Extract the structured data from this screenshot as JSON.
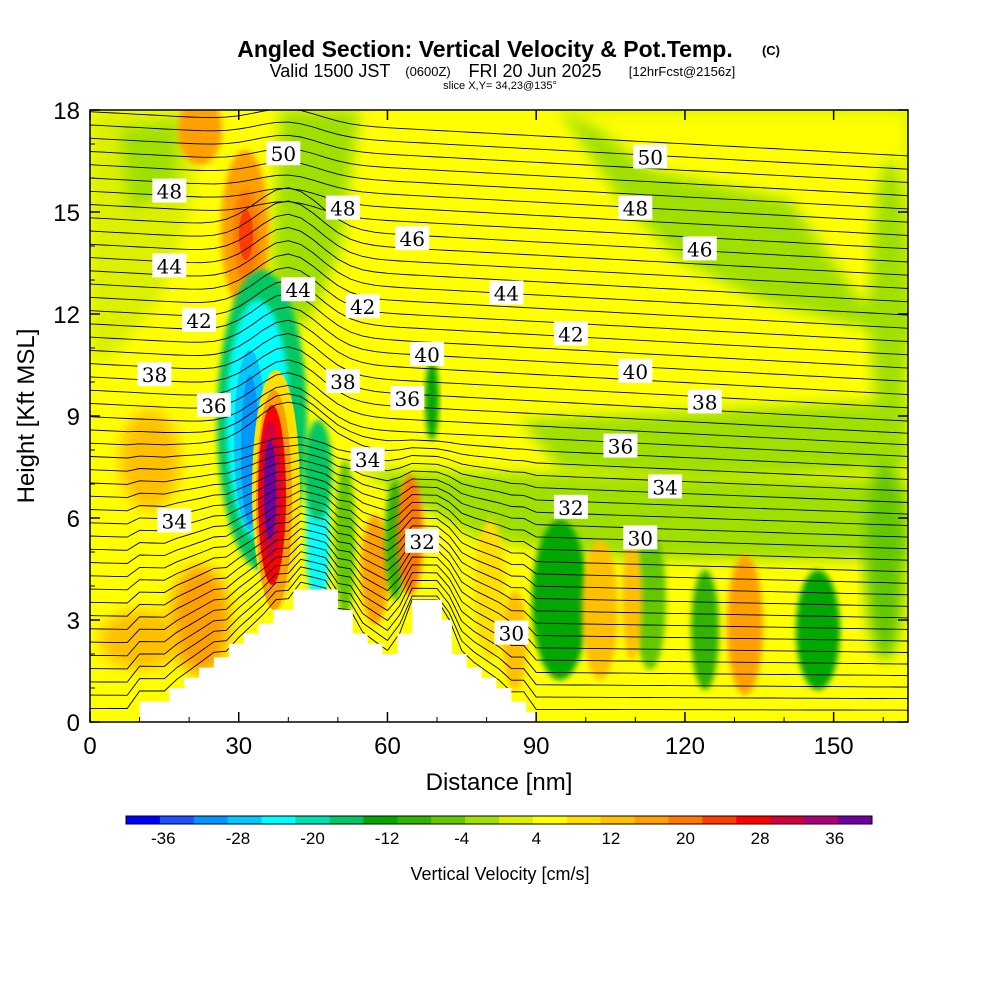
{
  "title": {
    "main": "Angled Section: Vertical Velocity & Pot.Temp.",
    "copyright": "(C)",
    "valid_prefix": "Valid 1500 JST",
    "valid_zulu": "(0600Z)",
    "valid_date": "FRI 20 Jun 2025",
    "forecast_note": "[12hrFcst@2156z]",
    "slice": "slice X,Y= 34,23@135°"
  },
  "chart_data": {
    "type": "heatmap",
    "xlabel": "Distance [nm]",
    "ylabel": "Height [Kft MSL]",
    "xlim": [
      0,
      165
    ],
    "ylim": [
      0,
      18
    ],
    "x_ticks": [
      "0",
      "30",
      "60",
      "90",
      "120",
      "150"
    ],
    "y_ticks": [
      "0",
      "3",
      "6",
      "9",
      "12",
      "15",
      "18"
    ],
    "x_tick_values": [
      0,
      30,
      60,
      90,
      120,
      150
    ],
    "y_tick_values": [
      0,
      3,
      6,
      9,
      12,
      15,
      18
    ],
    "colorbar": {
      "label": "Vertical Velocity [cm/s]",
      "tick_labels": [
        "-36",
        "-28",
        "-20",
        "-12",
        "-4",
        "4",
        "12",
        "20",
        "28",
        "36"
      ],
      "tick_values": [
        -36,
        -28,
        -20,
        -12,
        -4,
        4,
        12,
        20,
        28,
        36
      ],
      "range": [
        -40,
        40
      ],
      "colors": [
        "#0000ff",
        "#1e50ff",
        "#0096ff",
        "#00c8ff",
        "#00ffff",
        "#00e0b0",
        "#00c864",
        "#00a800",
        "#30b400",
        "#64c800",
        "#a0e000",
        "#dcf000",
        "#ffff00",
        "#ffe000",
        "#ffc000",
        "#ffa000",
        "#ff7800",
        "#ff3c00",
        "#ff0000",
        "#d2003c",
        "#aa0078",
        "#6e009e"
      ]
    },
    "contour_labels": [
      {
        "text": "50",
        "x": 39,
        "y": 16.7
      },
      {
        "text": "50",
        "x": 113,
        "y": 16.6
      },
      {
        "text": "48",
        "x": 16,
        "y": 15.6
      },
      {
        "text": "48",
        "x": 51,
        "y": 15.1
      },
      {
        "text": "48",
        "x": 110,
        "y": 15.1
      },
      {
        "text": "46",
        "x": 65,
        "y": 14.2
      },
      {
        "text": "46",
        "x": 123,
        "y": 13.9
      },
      {
        "text": "44",
        "x": 16,
        "y": 13.4
      },
      {
        "text": "44",
        "x": 42,
        "y": 12.7
      },
      {
        "text": "44",
        "x": 84,
        "y": 12.6
      },
      {
        "text": "42",
        "x": 22,
        "y": 11.8
      },
      {
        "text": "42",
        "x": 55,
        "y": 12.2
      },
      {
        "text": "42",
        "x": 97,
        "y": 11.4
      },
      {
        "text": "40",
        "x": 68,
        "y": 10.8
      },
      {
        "text": "40",
        "x": 110,
        "y": 10.3
      },
      {
        "text": "38",
        "x": 13,
        "y": 10.2
      },
      {
        "text": "38",
        "x": 51,
        "y": 10.0
      },
      {
        "text": "38",
        "x": 124,
        "y": 9.4
      },
      {
        "text": "36",
        "x": 25,
        "y": 9.3
      },
      {
        "text": "36",
        "x": 64,
        "y": 9.5
      },
      {
        "text": "36",
        "x": 107,
        "y": 8.1
      },
      {
        "text": "34",
        "x": 56,
        "y": 7.7
      },
      {
        "text": "34",
        "x": 116,
        "y": 6.9
      },
      {
        "text": "34",
        "x": 17,
        "y": 5.9
      },
      {
        "text": "32",
        "x": 67,
        "y": 5.3
      },
      {
        "text": "32",
        "x": 97,
        "y": 6.3
      },
      {
        "text": "30",
        "x": 111,
        "y": 5.4
      },
      {
        "text": "30",
        "x": 85,
        "y": 2.6
      }
    ],
    "terrain_heights_kft": [
      [
        0,
        0
      ],
      [
        10,
        0
      ],
      [
        10,
        0.6
      ],
      [
        16,
        0.6
      ],
      [
        16,
        1.0
      ],
      [
        19,
        1.0
      ],
      [
        19,
        1.3
      ],
      [
        22,
        1.3
      ],
      [
        22,
        1.6
      ],
      [
        25,
        1.6
      ],
      [
        25,
        1.9
      ],
      [
        28,
        1.9
      ],
      [
        28,
        2.3
      ],
      [
        31,
        2.3
      ],
      [
        31,
        2.6
      ],
      [
        34,
        2.6
      ],
      [
        34,
        2.9
      ],
      [
        37,
        2.9
      ],
      [
        37,
        3.3
      ],
      [
        41,
        3.3
      ],
      [
        41,
        3.9
      ],
      [
        50,
        3.9
      ],
      [
        50,
        3.3
      ],
      [
        53,
        3.3
      ],
      [
        53,
        2.6
      ],
      [
        56,
        2.6
      ],
      [
        56,
        2.3
      ],
      [
        59,
        2.3
      ],
      [
        59,
        2.0
      ],
      [
        62,
        2.0
      ],
      [
        62,
        2.6
      ],
      [
        65,
        2.6
      ],
      [
        65,
        3.6
      ],
      [
        71,
        3.6
      ],
      [
        71,
        3.0
      ],
      [
        73,
        3.0
      ],
      [
        73,
        2.0
      ],
      [
        76,
        2.0
      ],
      [
        76,
        1.6
      ],
      [
        79,
        1.6
      ],
      [
        79,
        1.3
      ],
      [
        82,
        1.3
      ],
      [
        82,
        1.0
      ],
      [
        85,
        1.0
      ],
      [
        85,
        0.6
      ],
      [
        88,
        0.6
      ],
      [
        88,
        0.3
      ],
      [
        90,
        0.3
      ],
      [
        90,
        0
      ],
      [
        165,
        0
      ]
    ]
  }
}
